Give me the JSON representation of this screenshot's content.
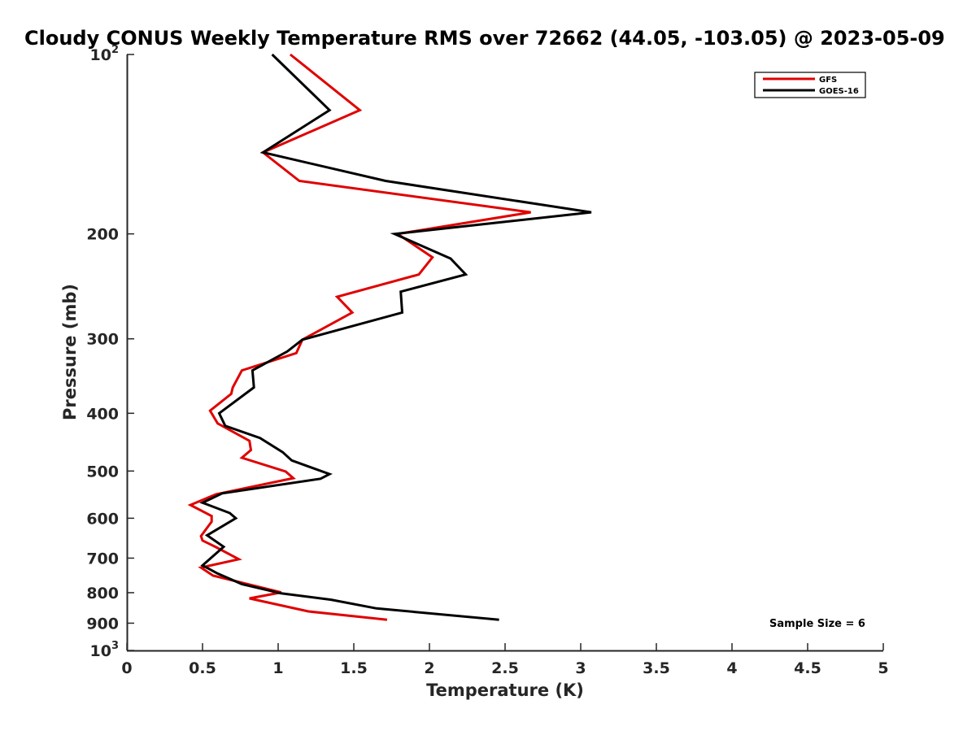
{
  "chart_data": {
    "type": "line",
    "title": "Cloudy CONUS Weekly Temperature RMS over 72662 (44.05, -103.05) @ 2023-05-09",
    "xlabel": "Temperature (K)",
    "ylabel": "Pressure (mb)",
    "xlim": [
      0,
      5
    ],
    "ylim": [
      100,
      1000
    ],
    "y_scale": "log",
    "y_reversed": true,
    "xticks": [
      "0",
      "0.5",
      "1",
      "1.5",
      "2",
      "2.5",
      "3",
      "3.5",
      "4",
      "4.5",
      "5"
    ],
    "yticks": [
      {
        "value": 100,
        "base": "10",
        "exp": "2"
      },
      {
        "value": 200,
        "label": "200"
      },
      {
        "value": 300,
        "label": "300"
      },
      {
        "value": 400,
        "label": "400"
      },
      {
        "value": 500,
        "label": "500"
      },
      {
        "value": 600,
        "label": "600"
      },
      {
        "value": 700,
        "label": "700"
      },
      {
        "value": 800,
        "label": "800"
      },
      {
        "value": 900,
        "label": "900"
      },
      {
        "value": 1000,
        "base": "10",
        "exp": "3"
      }
    ],
    "grid": false,
    "legend_position": "top-right",
    "annotation": "Sample Size = 6",
    "series": [
      {
        "name": "GFS",
        "color": "#e00000",
        "points": [
          [
            1.08,
            100
          ],
          [
            1.54,
            124
          ],
          [
            0.9,
            146
          ],
          [
            1.14,
            163
          ],
          [
            2.67,
            184
          ],
          [
            1.79,
            200
          ],
          [
            2.02,
            219
          ],
          [
            1.93,
            234
          ],
          [
            1.39,
            255
          ],
          [
            1.49,
            271
          ],
          [
            1.16,
            301
          ],
          [
            1.12,
            317
          ],
          [
            0.76,
            339
          ],
          [
            0.7,
            362
          ],
          [
            0.69,
            371
          ],
          [
            0.55,
            396
          ],
          [
            0.6,
            416
          ],
          [
            0.81,
            445
          ],
          [
            0.82,
            461
          ],
          [
            0.76,
            475
          ],
          [
            1.05,
            501
          ],
          [
            1.1,
            514
          ],
          [
            0.59,
            547
          ],
          [
            0.42,
            570
          ],
          [
            0.56,
            595
          ],
          [
            0.56,
            608
          ],
          [
            0.49,
            643
          ],
          [
            0.5,
            654
          ],
          [
            0.59,
            671
          ],
          [
            0.74,
            703
          ],
          [
            0.49,
            726
          ],
          [
            0.57,
            749
          ],
          [
            1.02,
            799
          ],
          [
            0.81,
            818
          ],
          [
            1.2,
            860
          ],
          [
            1.72,
            888
          ]
        ]
      },
      {
        "name": "GOES-16",
        "color": "#000000",
        "points": [
          [
            0.96,
            100
          ],
          [
            1.34,
            124
          ],
          [
            0.9,
            146
          ],
          [
            1.71,
            163
          ],
          [
            3.07,
            184
          ],
          [
            1.77,
            200
          ],
          [
            2.14,
            220
          ],
          [
            2.24,
            234
          ],
          [
            1.81,
            250
          ],
          [
            1.82,
            271
          ],
          [
            1.16,
            301
          ],
          [
            1.06,
            315
          ],
          [
            0.83,
            339
          ],
          [
            0.84,
            362
          ],
          [
            0.61,
            400
          ],
          [
            0.65,
            420
          ],
          [
            0.88,
            440
          ],
          [
            1.03,
            465
          ],
          [
            1.09,
            480
          ],
          [
            1.34,
            506
          ],
          [
            1.28,
            515
          ],
          [
            0.63,
            545
          ],
          [
            0.5,
            565
          ],
          [
            0.68,
            588
          ],
          [
            0.72,
            600
          ],
          [
            0.53,
            641
          ],
          [
            0.64,
            670
          ],
          [
            0.5,
            720
          ],
          [
            0.6,
            743
          ],
          [
            0.76,
            774
          ],
          [
            1.02,
            802
          ],
          [
            1.35,
            822
          ],
          [
            1.65,
            850
          ],
          [
            2.46,
            888
          ]
        ]
      }
    ]
  }
}
